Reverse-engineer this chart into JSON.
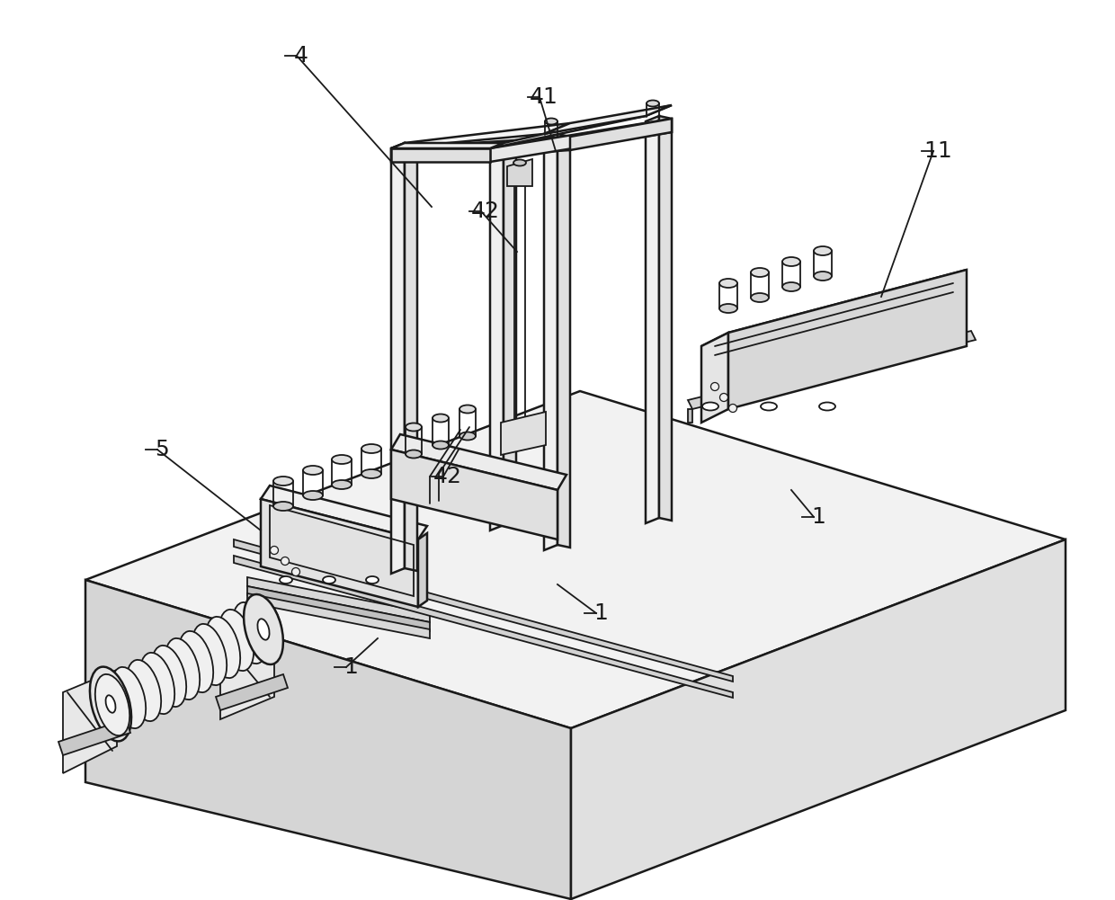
{
  "background_color": "#ffffff",
  "line_color": "#1a1a1a",
  "fill_light": "#f5f5f5",
  "fill_mid": "#e0e0e0",
  "fill_dark": "#c8c8c8",
  "fill_darker": "#b0b0b0"
}
